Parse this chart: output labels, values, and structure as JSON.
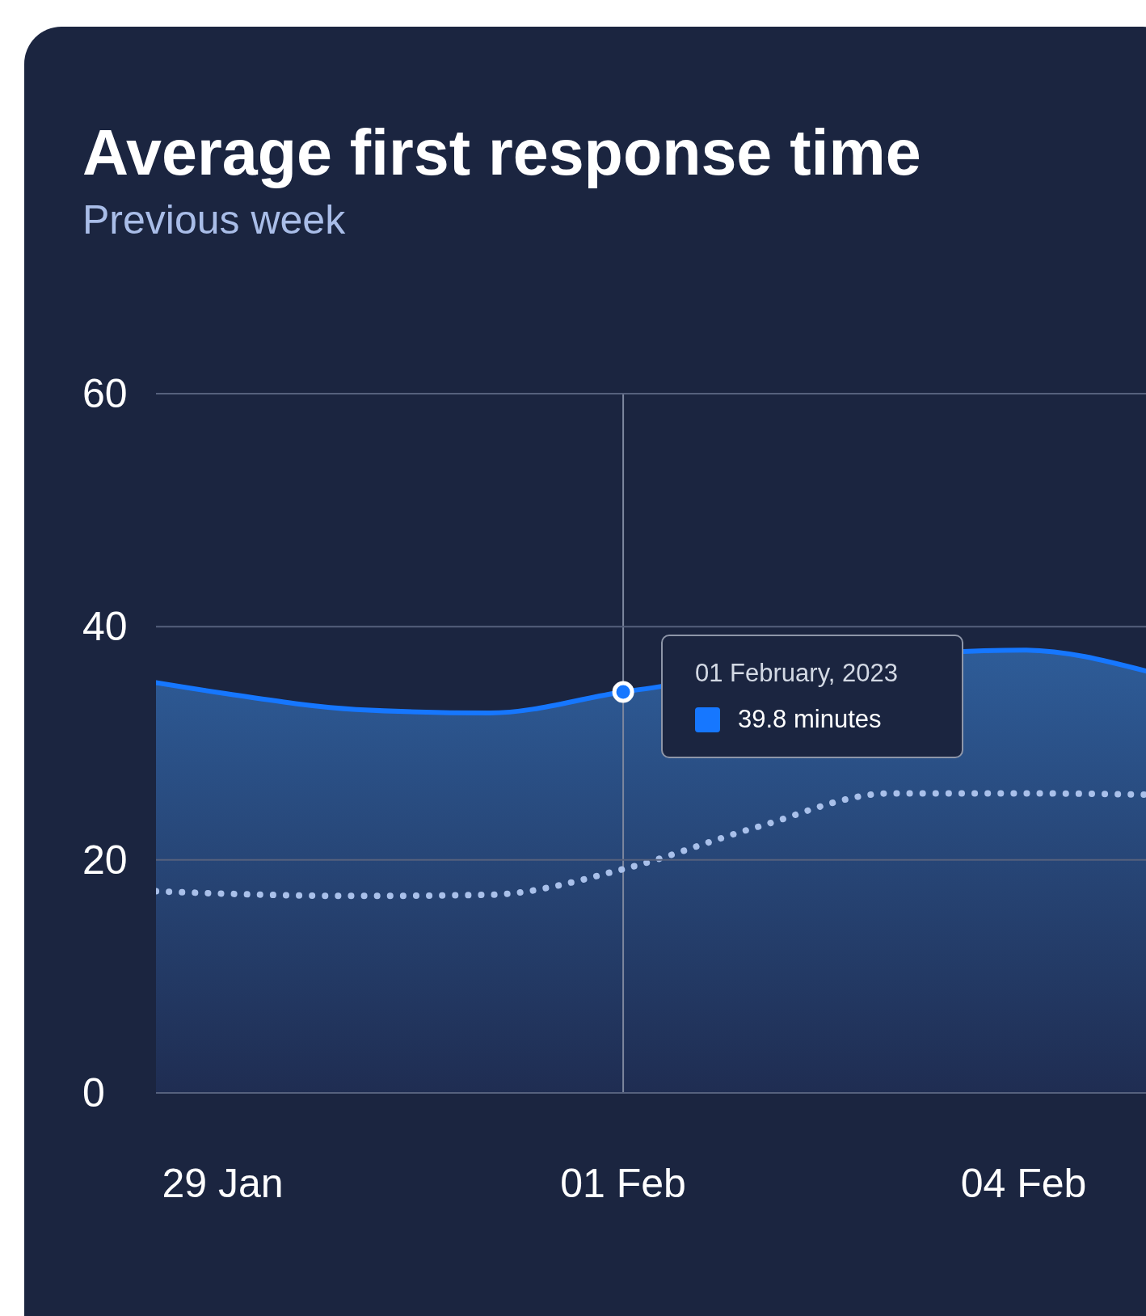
{
  "chart_data": {
    "type": "area",
    "title": "Average first response time",
    "subtitle": "Previous week",
    "x": [
      "2023-01-28T12:00",
      "2023-01-29",
      "2023-01-30",
      "2023-01-31",
      "2023-02-01",
      "2023-02-02",
      "2023-02-03",
      "2023-02-04",
      "2023-02-04T22:00"
    ],
    "series": [
      {
        "type": "area",
        "color": "#1677ff",
        "values": [
          35.2,
          34.3,
          32.9,
          32.6,
          34.4,
          null,
          null,
          38.0,
          36.2
        ]
      },
      {
        "type": "line",
        "color": "#a9c0ea",
        "line_style": "dotted",
        "values": [
          17.3,
          17.1,
          16.9,
          17.0,
          19.2,
          22.8,
          25.7,
          25.7,
          25.6
        ]
      }
    ],
    "xlim": [
      "2023-01-28T12:00",
      "2023-02-04T22:00"
    ],
    "xticks": [
      {
        "value": "2023-01-29",
        "label": "29 Jan"
      },
      {
        "value": "2023-02-01",
        "label": "01 Feb"
      },
      {
        "value": "2023-02-04",
        "label": "04 Feb"
      }
    ],
    "ylim": [
      0,
      60
    ],
    "yticks": [
      0,
      20,
      40,
      60
    ],
    "grid": "y",
    "legend": false,
    "marker": "none",
    "ref_lines": [
      {
        "axis": "x",
        "value": "2023-02-01",
        "color": "#7d879e"
      }
    ],
    "annotations": [
      {
        "text": "01 February, 2023",
        "x": "2023-02-01",
        "y": 34.4
      },
      "39.8 minutes"
    ]
  }
}
